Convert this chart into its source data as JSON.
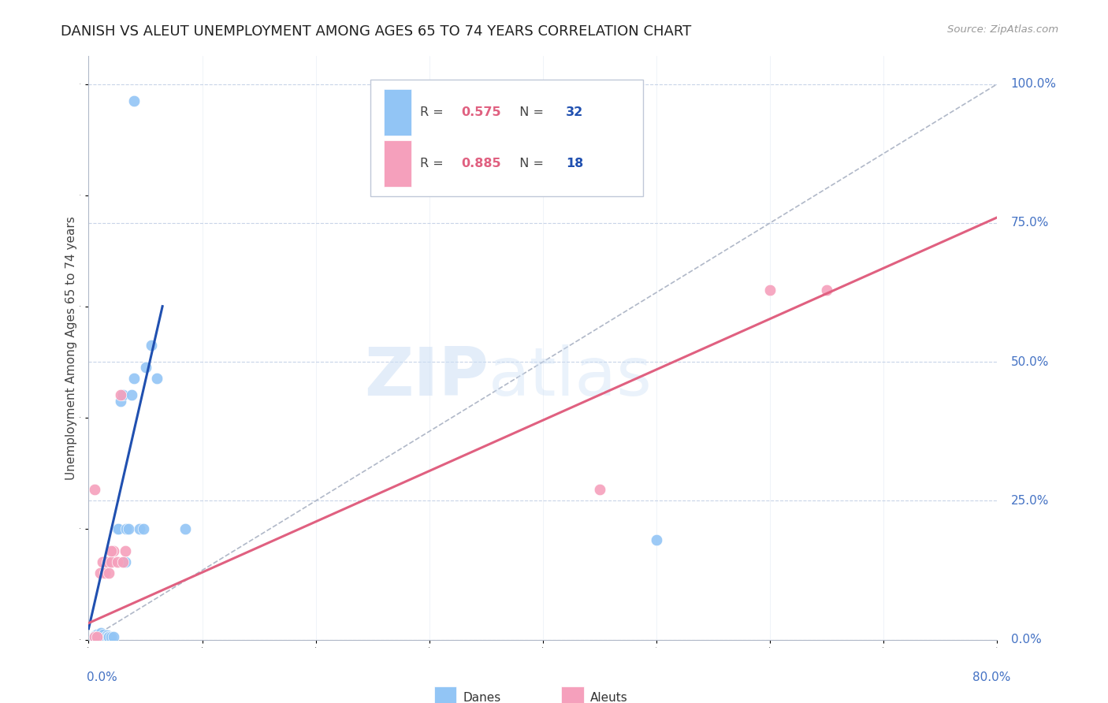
{
  "title": "DANISH VS ALEUT UNEMPLOYMENT AMONG AGES 65 TO 74 YEARS CORRELATION CHART",
  "source": "Source: ZipAtlas.com",
  "ylabel": "Unemployment Among Ages 65 to 74 years",
  "ytick_labels": [
    "0.0%",
    "25.0%",
    "50.0%",
    "75.0%",
    "100.0%"
  ],
  "ytick_values": [
    0.0,
    0.25,
    0.5,
    0.75,
    1.0
  ],
  "xtick_label_left": "0.0%",
  "xtick_label_right": "80.0%",
  "xlim": [
    0.0,
    0.8
  ],
  "ylim": [
    0.0,
    1.05
  ],
  "watermark_zip": "ZIP",
  "watermark_atlas": "atlas",
  "legend_r1": "0.575",
  "legend_n1": "32",
  "legend_r2": "0.885",
  "legend_n2": "18",
  "danes_color": "#92c5f5",
  "aleuts_color": "#f5a0bc",
  "danes_line_color": "#2050b0",
  "aleuts_line_color": "#e06080",
  "diag_line_color": "#b0b8c8",
  "grid_color": "#c8d4e8",
  "background_color": "#ffffff",
  "title_color": "#222222",
  "source_color": "#999999",
  "tick_label_color": "#4472c4",
  "ylabel_color": "#444444",
  "danes_scatter": [
    [
      0.005,
      0.005
    ],
    [
      0.006,
      0.008
    ],
    [
      0.007,
      0.01
    ],
    [
      0.008,
      0.005
    ],
    [
      0.009,
      0.008
    ],
    [
      0.01,
      0.006
    ],
    [
      0.011,
      0.012
    ],
    [
      0.012,
      0.005
    ],
    [
      0.013,
      0.009
    ],
    [
      0.015,
      0.005
    ],
    [
      0.016,
      0.008
    ],
    [
      0.017,
      0.005
    ],
    [
      0.018,
      0.005
    ],
    [
      0.02,
      0.005
    ],
    [
      0.022,
      0.005
    ],
    [
      0.025,
      0.2
    ],
    [
      0.026,
      0.2
    ],
    [
      0.028,
      0.43
    ],
    [
      0.03,
      0.44
    ],
    [
      0.032,
      0.14
    ],
    [
      0.033,
      0.2
    ],
    [
      0.035,
      0.2
    ],
    [
      0.038,
      0.44
    ],
    [
      0.04,
      0.47
    ],
    [
      0.045,
      0.2
    ],
    [
      0.048,
      0.2
    ],
    [
      0.05,
      0.49
    ],
    [
      0.055,
      0.53
    ],
    [
      0.06,
      0.47
    ],
    [
      0.085,
      0.2
    ],
    [
      0.5,
      0.18
    ],
    [
      0.04,
      0.97
    ]
  ],
  "aleuts_scatter": [
    [
      0.005,
      0.005
    ],
    [
      0.007,
      0.005
    ],
    [
      0.01,
      0.12
    ],
    [
      0.012,
      0.14
    ],
    [
      0.014,
      0.12
    ],
    [
      0.016,
      0.14
    ],
    [
      0.018,
      0.12
    ],
    [
      0.02,
      0.14
    ],
    [
      0.022,
      0.16
    ],
    [
      0.025,
      0.14
    ],
    [
      0.028,
      0.44
    ],
    [
      0.03,
      0.14
    ],
    [
      0.032,
      0.16
    ],
    [
      0.005,
      0.27
    ],
    [
      0.45,
      0.27
    ],
    [
      0.6,
      0.63
    ],
    [
      0.65,
      0.63
    ],
    [
      0.02,
      0.16
    ]
  ],
  "danes_line": [
    [
      0.0,
      0.02
    ],
    [
      0.065,
      0.6
    ]
  ],
  "aleuts_line": [
    [
      0.0,
      0.03
    ],
    [
      0.8,
      0.76
    ]
  ],
  "diag_line": [
    [
      0.0,
      0.0
    ],
    [
      0.8,
      1.0
    ]
  ]
}
